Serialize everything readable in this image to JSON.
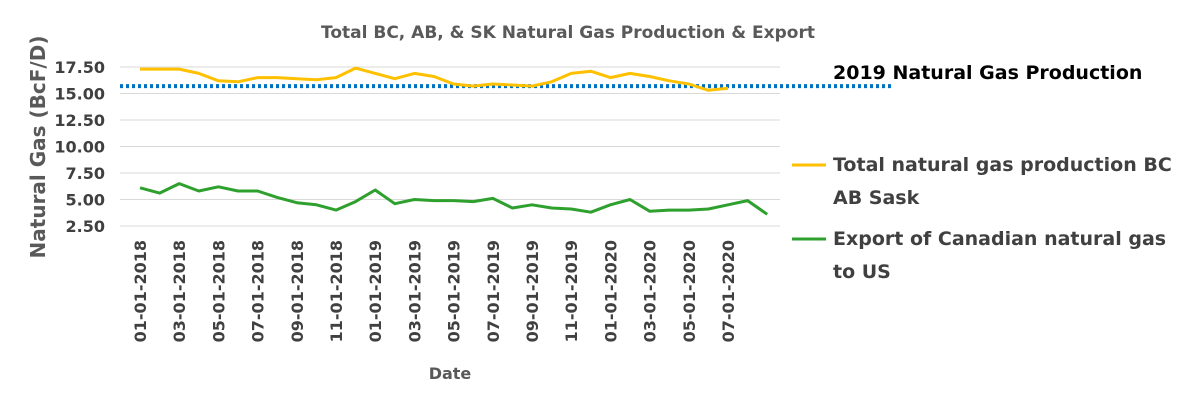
{
  "chart_data": {
    "type": "line",
    "title": "Total BC, AB, & SK Natural Gas Production & Export",
    "xlabel": "Date",
    "ylabel": "Natural Gas (BcF/D)",
    "ylim": [
      2.5,
      17.5
    ],
    "yticks": [
      "2.50",
      "5.00",
      "7.50",
      "10.00",
      "12.50",
      "15.00",
      "17.50"
    ],
    "ytick_values": [
      2.5,
      5,
      7.5,
      10,
      12.5,
      15,
      17.5
    ],
    "x": [
      "01-01-2018",
      "02-01-2018",
      "03-01-2018",
      "04-01-2018",
      "05-01-2018",
      "06-01-2018",
      "07-01-2018",
      "08-01-2018",
      "09-01-2018",
      "10-01-2018",
      "11-01-2018",
      "12-01-2018",
      "01-01-2019",
      "02-01-2019",
      "03-01-2019",
      "04-01-2019",
      "05-01-2019",
      "06-01-2019",
      "07-01-2019",
      "08-01-2019",
      "09-01-2019",
      "10-01-2019",
      "11-01-2019",
      "12-01-2019",
      "01-01-2020",
      "02-01-2020",
      "03-01-2020",
      "04-01-2020",
      "05-01-2020",
      "06-01-2020",
      "07-01-2020",
      "08-01-2020",
      "09-01-2020"
    ],
    "xtick_labels": [
      "01-01-2018",
      "03-01-2018",
      "05-01-2018",
      "07-01-2018",
      "09-01-2018",
      "11-01-2018",
      "01-01-2019",
      "03-01-2019",
      "05-01-2019",
      "07-01-2019",
      "09-01-2019",
      "11-01-2019",
      "01-01-2020",
      "03-01-2020",
      "05-01-2020",
      "07-01-2020"
    ],
    "grid": true,
    "legend_position": "right",
    "series": [
      {
        "name": "Total natural gas production BC AB Sask",
        "name_lines": [
          "Total natural gas production BC",
          "AB Sask"
        ],
        "color": "#FFC000",
        "values": [
          17.3,
          17.3,
          17.3,
          16.9,
          16.2,
          16.1,
          16.5,
          16.5,
          16.4,
          16.3,
          16.5,
          17.4,
          16.9,
          16.4,
          16.9,
          16.6,
          15.9,
          15.7,
          15.9,
          15.8,
          15.7,
          16.1,
          16.9,
          17.1,
          16.5,
          16.9,
          16.6,
          16.2,
          15.9,
          15.3,
          15.5,
          null,
          null
        ]
      },
      {
        "name": "Export of Canadian natural gas to US",
        "name_lines": [
          "Export of Canadian natural gas",
          "to US"
        ],
        "color": "#2EA02E",
        "values": [
          6.1,
          5.6,
          6.5,
          5.8,
          6.2,
          5.8,
          5.8,
          5.2,
          4.7,
          4.5,
          4.0,
          4.8,
          5.9,
          4.6,
          5.0,
          4.9,
          4.9,
          4.8,
          5.1,
          4.2,
          4.5,
          4.2,
          4.1,
          3.8,
          4.5,
          5.0,
          3.9,
          4.0,
          4.0,
          4.1,
          4.5,
          4.9,
          3.6
        ]
      }
    ],
    "reference_line": {
      "label": "2019 Natural Gas Production",
      "value": 15.7,
      "color": "#0070C0",
      "style": "dotted"
    }
  }
}
